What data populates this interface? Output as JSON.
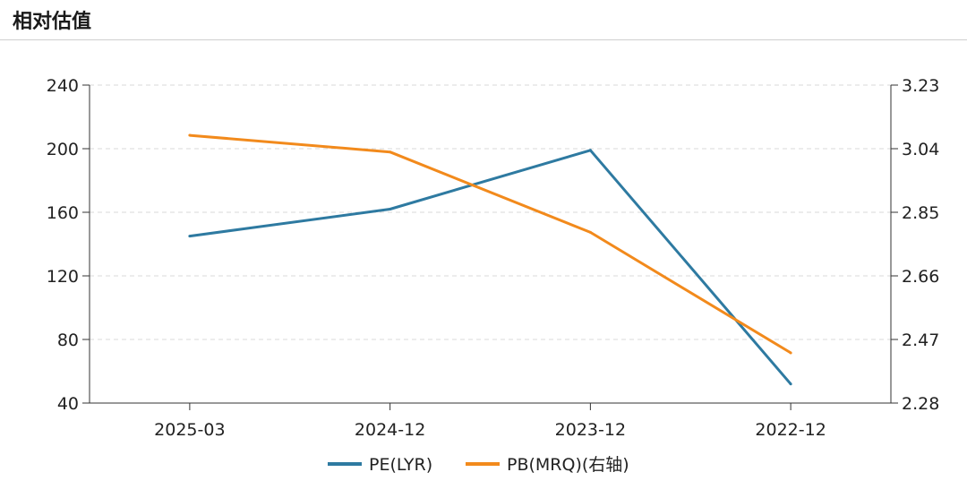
{
  "header": {
    "title": "相对估值"
  },
  "chart_data": {
    "type": "line",
    "categories": [
      "2025-03",
      "2024-12",
      "2023-12",
      "2022-12"
    ],
    "series": [
      {
        "name": "PE(LYR)",
        "axis": "left",
        "color": "#2e7aa1",
        "values": [
          145,
          162,
          199,
          52
        ]
      },
      {
        "name": "PB(MRQ)(右轴)",
        "axis": "right",
        "color": "#f28a1c",
        "values": [
          3.08,
          3.03,
          2.79,
          2.43
        ]
      }
    ],
    "y_left": {
      "ticks": [
        "240",
        "200",
        "160",
        "120",
        "80",
        "40"
      ],
      "range": [
        40,
        240
      ]
    },
    "y_right": {
      "ticks": [
        "3.23",
        "3.04",
        "2.85",
        "2.66",
        "2.47",
        "2.28"
      ],
      "range": [
        2.28,
        3.23
      ]
    },
    "grid": "horizontal-dashed",
    "legend": "bottom-center"
  }
}
